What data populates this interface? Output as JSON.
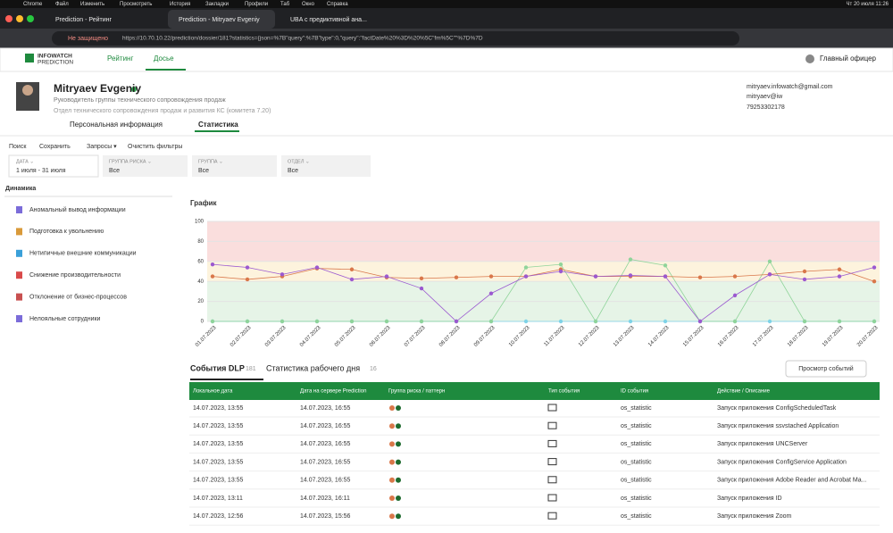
{
  "menubar": {
    "items": [
      "Chrome",
      "Файл",
      "Изменить",
      "Просмотреть",
      "История",
      "Закладки",
      "Профили",
      "Таб",
      "Окно",
      "Справка"
    ],
    "clock": "Чт 20 июля 11:26"
  },
  "browser": {
    "tabs": [
      "Prediction - Рейтинг",
      "Prediction - Mitryaev Evgeniy",
      "UBA с предиктивной ана..."
    ],
    "security": "Не защищено",
    "url": "https://10.70.10.22/prediction/dossier/181?statistics={json=%7B\"query\":%7B\"type\":0,\"query\":\"factDate%20%3D%20%5C\"fm%5C\"\"%7D%7D"
  },
  "app": {
    "logo_top": "INFOWATCH",
    "logo_bottom": "PREDICTION",
    "nav": [
      "Рейтинг",
      "Досье"
    ],
    "user": "Главный офицер"
  },
  "profile": {
    "name": "Mitryaev Evgeniy",
    "role": "Руководитель группы технического сопровождения продаж",
    "department": "Отдел технического сопровождения продаж и развития КС (комитета 7.20)",
    "tabs": [
      "Персональная информация",
      "Статистика"
    ],
    "email": "mitryaev.infowatch@gmail.com",
    "login": "mitryaev@iw",
    "phone": "79253302178"
  },
  "filters": {
    "search": "Поиск",
    "save": "Сохранить",
    "queries": "Запросы ▾",
    "clear": "Очистить фильтры",
    "chips": [
      {
        "label": "ДАТА ⌄",
        "value": "1 июля - 31 июля"
      },
      {
        "label": "ГРУППА РИСКА ⌄",
        "value": "Все"
      },
      {
        "label": "ГРУППА ⌄",
        "value": "Все"
      },
      {
        "label": "ОТДЕЛ ⌄",
        "value": "Все"
      }
    ]
  },
  "sidebar": {
    "title": "Динамика",
    "items": [
      "Аномальный вывод информации",
      "Подготовка к увольнению",
      "Нетипичные внешние коммуникации",
      "Снижение производительности",
      "Отклонение от бизнес-процессов",
      "Нелояльные сотрудники"
    ]
  },
  "chart": {
    "type": "line",
    "title": "График",
    "categories": [
      "01.07.2023",
      "02.07.2023",
      "03.07.2023",
      "04.07.2023",
      "05.07.2023",
      "06.07.2023",
      "07.07.2023",
      "08.07.2023",
      "09.07.2023",
      "10.07.2023",
      "11.07.2023",
      "12.07.2023",
      "13.07.2023",
      "14.07.2023",
      "15.07.2023",
      "16.07.2023",
      "17.07.2023",
      "18.07.2023",
      "19.07.2023",
      "20.07.2023"
    ],
    "ylim": [
      0,
      100
    ],
    "yticks": [
      0,
      20,
      40,
      60,
      80,
      100
    ],
    "grid": true,
    "series": [
      {
        "color": "#7fd3e8",
        "values": [
          0,
          0,
          0,
          0,
          0,
          0,
          0,
          0,
          0,
          0,
          0,
          0,
          0,
          0,
          0,
          0,
          0,
          0,
          0,
          0
        ]
      },
      {
        "color": "#8fd49a",
        "values": [
          0,
          0,
          0,
          0,
          0,
          0,
          0,
          0,
          0,
          54,
          57,
          0,
          62,
          56,
          0,
          0,
          60,
          0,
          0,
          0
        ]
      },
      {
        "color": "#d9774a",
        "values": [
          45,
          42,
          45,
          53,
          52,
          44,
          43,
          44,
          45,
          45,
          52,
          45,
          45,
          45,
          44,
          45,
          47,
          50,
          52,
          40
        ]
      },
      {
        "color": "#9b59d0",
        "values": [
          57,
          54,
          47,
          54,
          42,
          45,
          33,
          0,
          28,
          45,
          50,
          45,
          46,
          45,
          0,
          26,
          47,
          42,
          45,
          54
        ]
      }
    ]
  },
  "events": {
    "tabs": [
      {
        "label": "События DLP",
        "count": "181"
      },
      {
        "label": "Статистика рабочего дня",
        "count": "16"
      }
    ],
    "button": "Просмотр событий",
    "columns": [
      "Локальное дата",
      "Дата на сервере Prediction",
      "Группа риска / паттерн",
      "Тип события",
      "ID события",
      "Действие / Описание"
    ],
    "rows": [
      [
        "14.07.2023, 13:55",
        "14.07.2023, 16:55",
        "os_statistic",
        "Запуск приложения ConfigScheduledTask"
      ],
      [
        "14.07.2023, 13:55",
        "14.07.2023, 16:55",
        "os_statistic",
        "Запуск приложения ssvstached Application"
      ],
      [
        "14.07.2023, 13:55",
        "14.07.2023, 16:55",
        "os_statistic",
        "Запуск приложения UNCServer"
      ],
      [
        "14.07.2023, 13:55",
        "14.07.2023, 16:55",
        "os_statistic",
        "Запуск приложения ConfigService Application"
      ],
      [
        "14.07.2023, 13:55",
        "14.07.2023, 16:55",
        "os_statistic",
        "Запуск приложения Adobe Reader and Acrobat Ma..."
      ],
      [
        "14.07.2023, 13:11",
        "14.07.2023, 16:11",
        "os_statistic",
        "Запуск приложения ID"
      ],
      [
        "14.07.2023, 12:56",
        "14.07.2023, 15:56",
        "os_statistic",
        "Запуск приложения Zoom"
      ]
    ]
  }
}
